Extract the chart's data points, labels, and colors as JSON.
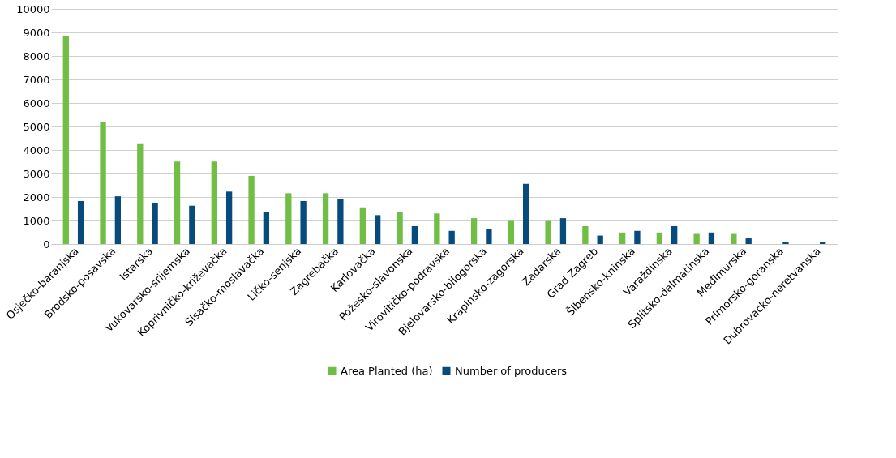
{
  "chart_data": {
    "type": "bar",
    "categories": [
      "Osječko-baranjska",
      "Brodsko-posavska",
      "Istarska",
      "Vukovarsko-srijemska",
      "Koprivničko-križevačka",
      "Sisačko-moslavačka",
      "Ličko-senjska",
      "Zagrebačka",
      "Karlovačka",
      "Požeško-slavonska",
      "Virovitičko-podravska",
      "Bjelovarsko-bilogorska",
      "Krapinsko-zagorska",
      "Zadarska",
      "Grad Zagreb",
      "Šibensko-kninska",
      "Varaždinska",
      "Splitsko-dalmatinska",
      "Međimurska",
      "Primorsko-goranska",
      "Dubrovačko-neretvanska"
    ],
    "series": [
      {
        "name": "Area Planted (ha)",
        "color": "#70bf44",
        "values": [
          8830,
          5190,
          4250,
          3510,
          3510,
          2900,
          2160,
          2160,
          1560,
          1360,
          1300,
          1100,
          980,
          980,
          760,
          490,
          490,
          430,
          430,
          0,
          0
        ]
      },
      {
        "name": "Number of producers",
        "color": "#064b7c",
        "values": [
          1830,
          2030,
          1760,
          1630,
          2230,
          1360,
          1830,
          1900,
          1230,
          760,
          560,
          640,
          2560,
          1100,
          360,
          560,
          760,
          490,
          240,
          100,
          100
        ]
      }
    ],
    "ylim": [
      0,
      10000
    ],
    "yticks": [
      0,
      1000,
      2000,
      3000,
      4000,
      5000,
      6000,
      7000,
      8000,
      9000,
      10000
    ],
    "grid": "y",
    "legend": "bottom"
  }
}
